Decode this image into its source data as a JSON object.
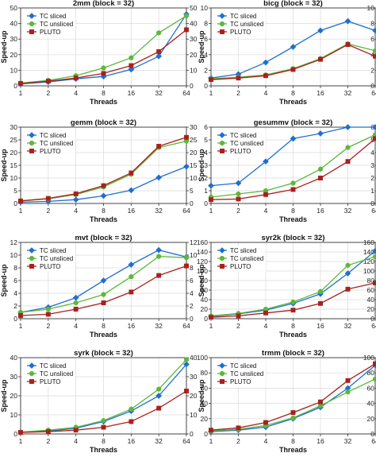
{
  "legend_labels": [
    "TC sliced",
    "TC unsliced",
    "PLUTO"
  ],
  "series_colors": [
    "#1f6fd0",
    "#5db83a",
    "#a8211c"
  ],
  "series_markers": [
    "diamond",
    "circle",
    "square"
  ],
  "chart_data": [
    {
      "type": "line",
      "title": "2mm (block = 32)",
      "xlabel": "Threads",
      "ylabel": "Speed-up",
      "categories": [
        "1",
        "2",
        "4",
        "8",
        "16",
        "32",
        "64"
      ],
      "ylim": [
        0,
        50
      ],
      "yticks": [
        0,
        10,
        20,
        30,
        40,
        50
      ],
      "right_ylim": [
        0,
        50
      ],
      "right_yticks": [
        0,
        10,
        20,
        30,
        40,
        50
      ],
      "grid": true,
      "legend": "top-left",
      "series": [
        {
          "name": "TC sliced",
          "values": [
            1.2,
            2.5,
            4.5,
            6,
            10.5,
            19,
            46
          ]
        },
        {
          "name": "TC unsliced",
          "values": [
            1.8,
            3.5,
            6.5,
            11.5,
            18,
            34,
            45
          ]
        },
        {
          "name": "PLUTO",
          "values": [
            1.5,
            3,
            5,
            8,
            13,
            22,
            36
          ]
        }
      ]
    },
    {
      "type": "line",
      "title": "bicg (block = 32)",
      "xlabel": "Threads",
      "ylabel": "Speed-up",
      "categories": [
        "1",
        "2",
        "4",
        "8",
        "16",
        "32",
        "64"
      ],
      "ylim": [
        0,
        10
      ],
      "yticks": [
        0,
        2,
        4,
        6,
        8,
        10
      ],
      "right_ylim": [
        0,
        10
      ],
      "right_yticks": [
        0,
        2,
        4,
        6,
        8,
        10
      ],
      "grid": true,
      "legend": "top-left",
      "series": [
        {
          "name": "TC sliced",
          "values": [
            1,
            1.5,
            3,
            5,
            7.1,
            8.3,
            7.1
          ]
        },
        {
          "name": "TC unsliced",
          "values": [
            0.9,
            1.1,
            1.4,
            2.2,
            3.5,
            5.4,
            4.5
          ]
        },
        {
          "name": "PLUTO",
          "values": [
            0.8,
            1,
            1.3,
            2.1,
            3.4,
            5.3,
            3.8
          ]
        }
      ]
    },
    {
      "type": "line",
      "title": "gemm (block = 32)",
      "xlabel": "Threads",
      "ylabel": "Speed-up",
      "categories": [
        "1",
        "2",
        "4",
        "8",
        "16",
        "32",
        "64"
      ],
      "ylim": [
        0,
        30
      ],
      "yticks": [
        0,
        5,
        10,
        15,
        20,
        25,
        30
      ],
      "right_ylim": [
        0,
        30
      ],
      "right_yticks": [
        0,
        5,
        10,
        15,
        20,
        25,
        30
      ],
      "grid": true,
      "legend": "top-left",
      "series": [
        {
          "name": "TC sliced",
          "values": [
            0.5,
            0.8,
            1.5,
            3,
            5.2,
            10.2,
            14.5
          ]
        },
        {
          "name": "TC unsliced",
          "values": [
            1,
            1.8,
            3.5,
            6.5,
            11.5,
            22,
            24.5
          ]
        },
        {
          "name": "PLUTO",
          "values": [
            1,
            2,
            3.8,
            7,
            12,
            22.5,
            26
          ]
        }
      ]
    },
    {
      "type": "line",
      "title": "gesummv (block = 32)",
      "xlabel": "Threads",
      "ylabel": "Speed-up",
      "categories": [
        "1",
        "2",
        "4",
        "8",
        "16",
        "32",
        "64"
      ],
      "ylim": [
        0,
        6
      ],
      "yticks": [
        0,
        1,
        2,
        3,
        4,
        5,
        6
      ],
      "right_ylim": [
        0,
        6
      ],
      "right_yticks": [
        0,
        1,
        2,
        3,
        4,
        5,
        6
      ],
      "grid": true,
      "legend": "top-left",
      "series": [
        {
          "name": "TC sliced",
          "values": [
            1.4,
            1.6,
            3.3,
            5.1,
            5.5,
            6,
            6
          ]
        },
        {
          "name": "TC unsliced",
          "values": [
            0.5,
            0.75,
            1,
            1.6,
            2.7,
            4.4,
            5.4
          ]
        },
        {
          "name": "PLUTO",
          "values": [
            0.3,
            0.35,
            0.7,
            1.1,
            2,
            3.3,
            5.1
          ]
        }
      ]
    },
    {
      "type": "line",
      "title": "mvt (block = 32)",
      "xlabel": "Threads",
      "ylabel": "Speed-up",
      "categories": [
        "1",
        "2",
        "4",
        "8",
        "16",
        "32",
        "64"
      ],
      "ylim": [
        0,
        12
      ],
      "yticks": [
        0,
        2,
        4,
        6,
        8,
        10,
        12
      ],
      "right_ylim": [
        0,
        12
      ],
      "right_yticks": [
        0,
        2,
        4,
        6,
        8,
        10,
        12
      ],
      "grid": true,
      "legend": "top-left",
      "series": [
        {
          "name": "TC sliced",
          "values": [
            1,
            1.8,
            3.3,
            6,
            8.5,
            10.8,
            9.7
          ]
        },
        {
          "name": "TC unsliced",
          "values": [
            1,
            1.5,
            2.5,
            3.8,
            6.6,
            9.8,
            9.6
          ]
        },
        {
          "name": "PLUTO",
          "values": [
            0.5,
            0.7,
            1.5,
            2.5,
            4.2,
            6.8,
            8.3
          ]
        }
      ]
    },
    {
      "type": "line",
      "title": "syr2k (block = 32)",
      "xlabel": "Threads",
      "ylabel": "Speed-up",
      "categories": [
        "1",
        "2",
        "4",
        "8",
        "16",
        "32",
        "64"
      ],
      "ylim": [
        0,
        160
      ],
      "yticks": [
        0,
        20,
        40,
        60,
        80,
        100,
        120,
        140,
        160
      ],
      "right_ylim": [
        0,
        160
      ],
      "right_yticks": [
        0,
        20,
        40,
        60,
        80,
        100,
        120,
        140,
        160
      ],
      "grid": true,
      "legend": "top-left",
      "series": [
        {
          "name": "TC sliced",
          "values": [
            5,
            10,
            18,
            32,
            52,
            95,
            142
          ]
        },
        {
          "name": "TC unsliced",
          "values": [
            6,
            11,
            20,
            35,
            57,
            112,
            130
          ]
        },
        {
          "name": "PLUTO",
          "values": [
            3,
            6,
            12,
            18,
            32,
            62,
            75
          ]
        }
      ]
    },
    {
      "type": "line",
      "title": "syrk (block = 32)",
      "xlabel": "Threads",
      "ylabel": "Speed-up",
      "categories": [
        "1",
        "2",
        "4",
        "8",
        "16",
        "32",
        "64"
      ],
      "ylim": [
        0,
        40
      ],
      "yticks": [
        0,
        10,
        20,
        30,
        40
      ],
      "right_ylim": [
        0,
        40
      ],
      "right_yticks": [
        0,
        10,
        20,
        30,
        40
      ],
      "grid": true,
      "legend": "top-left",
      "series": [
        {
          "name": "TC sliced",
          "values": [
            1,
            1.5,
            3,
            6.5,
            12,
            20,
            36.5
          ]
        },
        {
          "name": "TC unsliced",
          "values": [
            1,
            2,
            3.5,
            7,
            13,
            23.5,
            39
          ]
        },
        {
          "name": "PLUTO",
          "values": [
            0.8,
            1.2,
            2,
            3.5,
            6.5,
            13.5,
            22.5
          ]
        }
      ]
    },
    {
      "type": "line",
      "title": "trmm (block = 32)",
      "xlabel": "Threads",
      "ylabel": "Speed-up",
      "categories": [
        "1",
        "2",
        "4",
        "8",
        "16",
        "32",
        "64"
      ],
      "ylim": [
        0,
        100
      ],
      "yticks": [
        0,
        20,
        40,
        60,
        80,
        100
      ],
      "right_ylim": [
        0,
        100
      ],
      "right_yticks": [
        0,
        20,
        40,
        60,
        80,
        100
      ],
      "grid": true,
      "legend": "top-left",
      "series": [
        {
          "name": "TC sliced",
          "values": [
            3,
            5,
            9,
            20,
            35,
            60,
            90
          ]
        },
        {
          "name": "TC unsliced",
          "values": [
            4,
            6,
            11,
            21,
            37,
            55,
            72
          ]
        },
        {
          "name": "PLUTO",
          "values": [
            5,
            8,
            15,
            28,
            42,
            70,
            92
          ]
        }
      ]
    }
  ]
}
